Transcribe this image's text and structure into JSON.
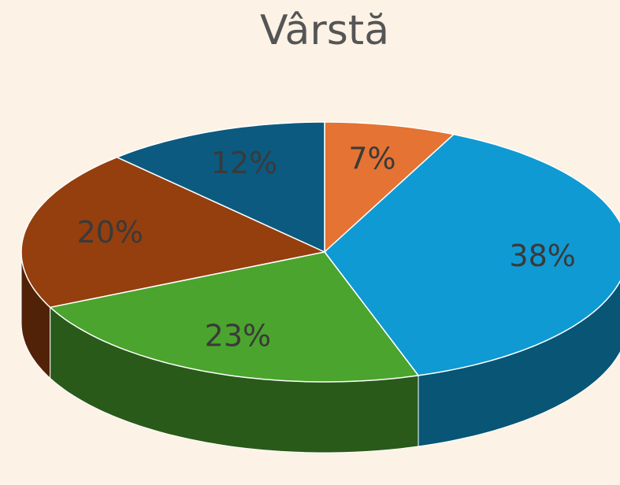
{
  "chart_data": {
    "type": "pie",
    "title": "Vârstă",
    "values": [
      7,
      38,
      23,
      20,
      12
    ],
    "value_labels": [
      "7%",
      "38%",
      "23%",
      "20%",
      "12%"
    ],
    "colors": [
      "#e57333",
      "#0f9ad4",
      "#4ba42d",
      "#953e0e",
      "#0c5a80"
    ]
  }
}
